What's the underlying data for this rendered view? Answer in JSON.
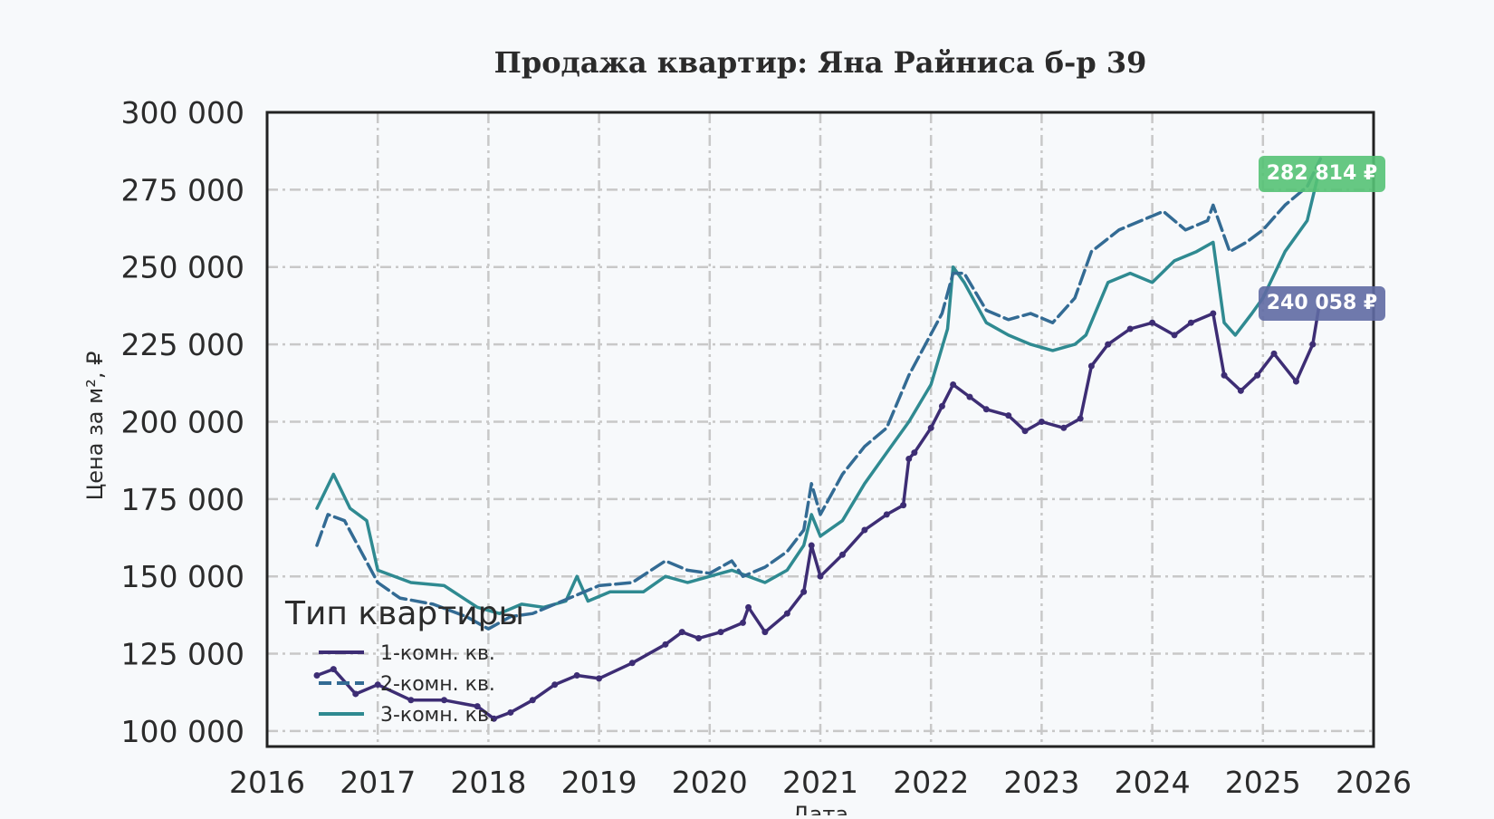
{
  "chart_data": {
    "type": "line",
    "title": "Продажа квартир: Яна Райниса б-р 39",
    "xlabel": "Дата",
    "ylabel": "Цена за м², ₽",
    "xlim": [
      2016,
      2026
    ],
    "ylim": [
      95000,
      300000
    ],
    "x_ticks": [
      "2016",
      "2017",
      "2018",
      "2019",
      "2020",
      "2021",
      "2022",
      "2023",
      "2024",
      "2025",
      "2026"
    ],
    "y_ticks": [
      "300 000",
      "275 000",
      "250 000",
      "225 000",
      "200 000",
      "175 000",
      "150 000",
      "125 000",
      "100 000"
    ],
    "grid": true,
    "legend": {
      "title": "Тип квартиры",
      "placement": "lower-left"
    },
    "series": [
      {
        "name": "1-комн. кв.",
        "color": "#3d2d74",
        "style": "solid-with-markers",
        "x": [
          2016.45,
          2016.6,
          2016.8,
          2017.0,
          2017.3,
          2017.6,
          2017.9,
          2018.05,
          2018.2,
          2018.4,
          2018.6,
          2018.8,
          2019.0,
          2019.3,
          2019.6,
          2019.75,
          2019.9,
          2020.1,
          2020.3,
          2020.35,
          2020.5,
          2020.7,
          2020.85,
          2020.92,
          2021.0,
          2021.2,
          2021.4,
          2021.6,
          2021.75,
          2021.8,
          2021.85,
          2022.0,
          2022.1,
          2022.2,
          2022.35,
          2022.5,
          2022.7,
          2022.85,
          2023.0,
          2023.2,
          2023.35,
          2023.45,
          2023.6,
          2023.8,
          2024.0,
          2024.2,
          2024.35,
          2024.55,
          2024.65,
          2024.8,
          2024.95,
          2025.1,
          2025.3,
          2025.45,
          2025.52
        ],
        "y": [
          118000,
          120000,
          112000,
          115000,
          110000,
          110000,
          108000,
          104000,
          106000,
          110000,
          115000,
          118000,
          117000,
          122000,
          128000,
          132000,
          130000,
          132000,
          135000,
          140000,
          132000,
          138000,
          145000,
          160000,
          150000,
          157000,
          165000,
          170000,
          173000,
          188000,
          190000,
          198000,
          205000,
          212000,
          208000,
          204000,
          202000,
          197000,
          200000,
          198000,
          201000,
          218000,
          225000,
          230000,
          232000,
          228000,
          232000,
          235000,
          215000,
          210000,
          215000,
          222000,
          213000,
          225000,
          240058
        ]
      },
      {
        "name": "2-комн. кв.",
        "color": "#336b94",
        "style": "dashed",
        "x": [
          2016.45,
          2016.55,
          2016.7,
          2016.85,
          2017.0,
          2017.2,
          2017.5,
          2017.8,
          2018.0,
          2018.2,
          2018.4,
          2018.6,
          2018.8,
          2019.0,
          2019.3,
          2019.6,
          2019.8,
          2020.0,
          2020.2,
          2020.3,
          2020.5,
          2020.7,
          2020.85,
          2020.92,
          2021.0,
          2021.2,
          2021.4,
          2021.6,
          2021.8,
          2021.95,
          2022.1,
          2022.2,
          2022.3,
          2022.5,
          2022.7,
          2022.9,
          2023.1,
          2023.3,
          2023.45,
          2023.7,
          2023.9,
          2024.1,
          2024.3,
          2024.5,
          2024.55,
          2024.7,
          2024.85,
          2025.0,
          2025.2,
          2025.4,
          2025.52
        ],
        "y": [
          160000,
          170000,
          168000,
          158000,
          148000,
          143000,
          141000,
          137000,
          133000,
          137000,
          138000,
          141000,
          144000,
          147000,
          148000,
          155000,
          152000,
          151000,
          155000,
          150000,
          153000,
          158000,
          165000,
          180000,
          170000,
          183000,
          192000,
          198000,
          215000,
          225000,
          235000,
          248000,
          248000,
          236000,
          233000,
          235000,
          232000,
          240000,
          255000,
          262000,
          265000,
          268000,
          262000,
          265000,
          270000,
          255000,
          258000,
          262000,
          270000,
          276000,
          285000
        ]
      },
      {
        "name": "3-комн. кв.",
        "color": "#2f8a91",
        "style": "solid",
        "x": [
          2016.45,
          2016.6,
          2016.75,
          2016.9,
          2017.0,
          2017.3,
          2017.6,
          2017.9,
          2018.1,
          2018.3,
          2018.5,
          2018.7,
          2018.8,
          2018.9,
          2019.1,
          2019.4,
          2019.6,
          2019.8,
          2020.0,
          2020.2,
          2020.5,
          2020.7,
          2020.85,
          2020.92,
          2021.0,
          2021.2,
          2021.4,
          2021.6,
          2021.8,
          2022.0,
          2022.15,
          2022.2,
          2022.3,
          2022.5,
          2022.7,
          2022.9,
          2023.1,
          2023.3,
          2023.4,
          2023.6,
          2023.8,
          2024.0,
          2024.2,
          2024.4,
          2024.55,
          2024.65,
          2024.75,
          2024.9,
          2025.0,
          2025.2,
          2025.4,
          2025.52
        ],
        "y": [
          172000,
          183000,
          172000,
          168000,
          152000,
          148000,
          147000,
          140000,
          138000,
          141000,
          140000,
          142000,
          150000,
          142000,
          145000,
          145000,
          150000,
          148000,
          150000,
          152000,
          148000,
          152000,
          160000,
          170000,
          163000,
          168000,
          180000,
          190000,
          200000,
          212000,
          230000,
          250000,
          245000,
          232000,
          228000,
          225000,
          223000,
          225000,
          228000,
          245000,
          248000,
          245000,
          252000,
          255000,
          258000,
          232000,
          228000,
          235000,
          240000,
          255000,
          265000,
          282814
        ]
      }
    ],
    "annotations": [
      {
        "text": "282 814 ₽",
        "color": "#55c275"
      },
      {
        "text": "240 058 ₽",
        "color": "#5f6aa3"
      }
    ]
  }
}
